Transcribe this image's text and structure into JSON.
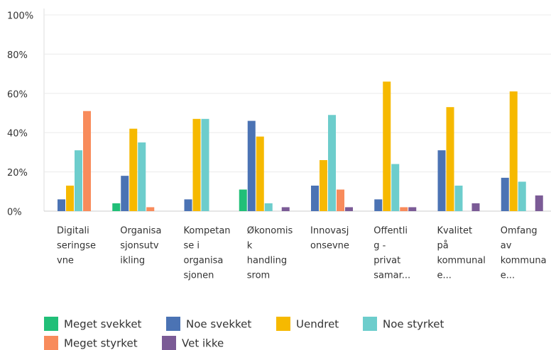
{
  "chart_data": {
    "type": "bar",
    "categories": [
      [
        "Digitali",
        "seringse",
        "vne"
      ],
      [
        "Organisa",
        "sjonsutv",
        "ikling"
      ],
      [
        "Kompetan",
        "se i",
        "organisa",
        "sjonen"
      ],
      [
        "Økonomis",
        "k",
        "handling",
        "srom"
      ],
      [
        "Innovasj",
        "onsevne"
      ],
      [
        "Offentli",
        "g -",
        "privat",
        "samar..."
      ],
      [
        "Kvalitet",
        "på",
        "kommunal",
        "e..."
      ],
      [
        "Omfang",
        "av",
        "kommuna",
        "e..."
      ]
    ],
    "series": [
      {
        "name": "Meget svekket",
        "color": "#21bf78",
        "values": [
          0,
          4,
          0,
          11,
          0,
          0,
          0,
          0
        ]
      },
      {
        "name": "Noe svekket",
        "color": "#4b73b4",
        "values": [
          6,
          18,
          6,
          46,
          13,
          6,
          31,
          17
        ]
      },
      {
        "name": "Uendret",
        "color": "#f6b900",
        "values": [
          13,
          42,
          47,
          38,
          26,
          66,
          53,
          61
        ]
      },
      {
        "name": "Noe styrket",
        "color": "#6dcdcc",
        "values": [
          31,
          35,
          47,
          4,
          49,
          24,
          13,
          15
        ]
      },
      {
        "name": "Meget styrket",
        "color": "#f88b5b",
        "values": [
          51,
          2,
          0,
          0,
          11,
          2,
          0,
          0
        ]
      },
      {
        "name": "Vet ikke",
        "color": "#7b5b96",
        "values": [
          0,
          0,
          0,
          2,
          2,
          2,
          4,
          8
        ]
      }
    ],
    "ylim": [
      0,
      100
    ],
    "yticks": [
      {
        "value": 0,
        "label": "0%"
      },
      {
        "value": 20,
        "label": "20%"
      },
      {
        "value": 40,
        "label": "40%"
      },
      {
        "value": 60,
        "label": "60%"
      },
      {
        "value": 80,
        "label": "80%"
      },
      {
        "value": 100,
        "label": "100%"
      }
    ],
    "grid": true
  }
}
